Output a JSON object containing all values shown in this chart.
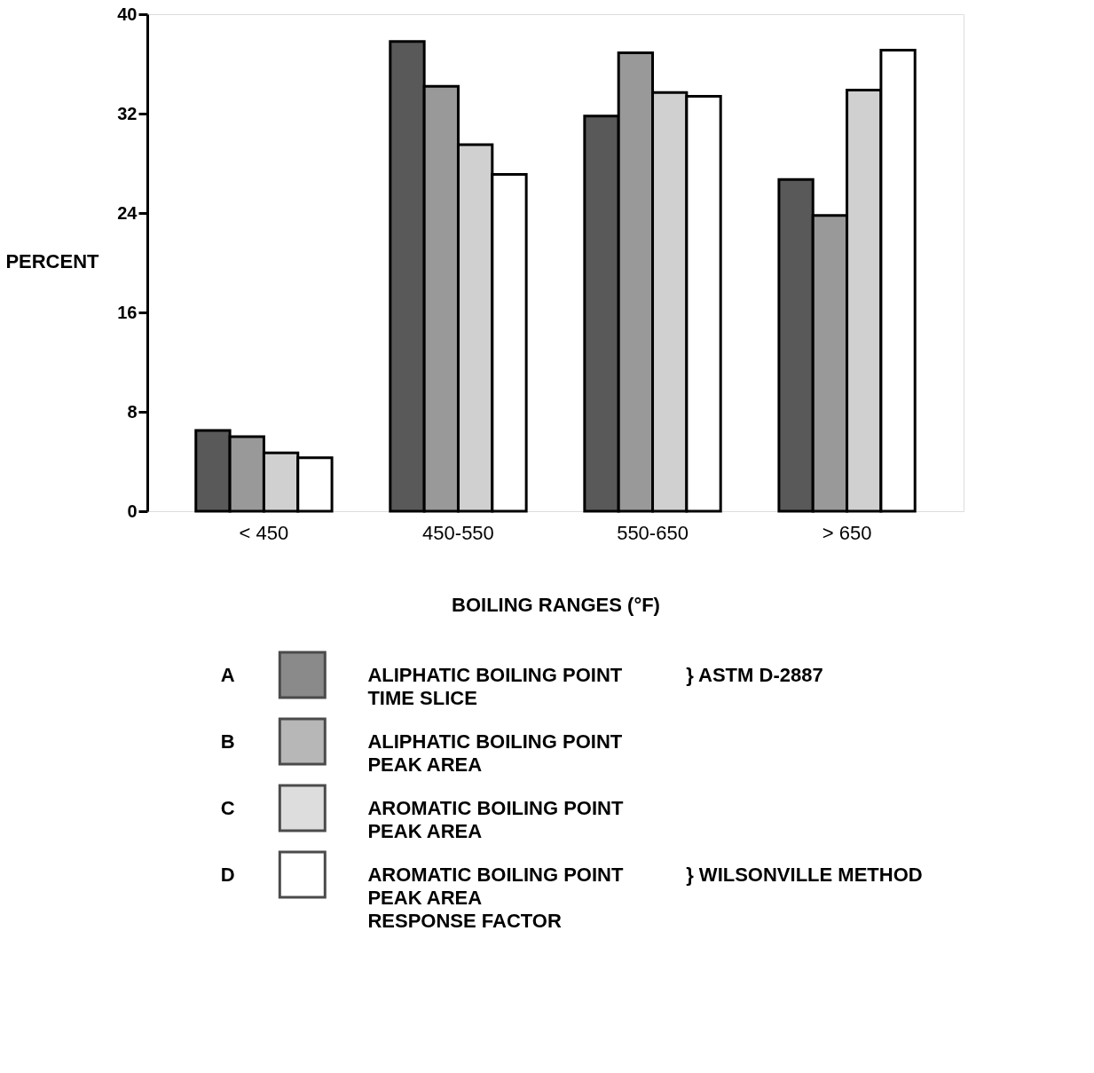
{
  "chart_data": {
    "type": "bar",
    "xlabel": "BOILING RANGES (°F)",
    "ylabel": "PERCENT",
    "categories": [
      "< 450",
      "450-550",
      "550-650",
      "> 650"
    ],
    "series": [
      {
        "name": "ALIPHATIC BOILING POINT\nTIME SLICE",
        "color": "#595959",
        "values": [
          6.5,
          37.8,
          31.8,
          26.7
        ]
      },
      {
        "name": "ALIPHATIC BOILING POINT\nPEAK AREA",
        "color": "#999999",
        "values": [
          6.0,
          34.2,
          36.9,
          23.8
        ]
      },
      {
        "name": "AROMATIC BOILING POINT\nPEAK AREA",
        "color": "#d0d0d0",
        "values": [
          4.7,
          29.5,
          33.7,
          33.9
        ]
      },
      {
        "name": "AROMATIC BOILING POINT\nPEAK AREA\nRESPONSE FACTOR",
        "color": "#ffffff",
        "values": [
          4.3,
          27.1,
          33.4,
          37.1
        ]
      }
    ],
    "ylim": [
      0,
      40
    ],
    "yticks": [
      0,
      8,
      16,
      24,
      32,
      40
    ],
    "grid": false,
    "legend": "bottom",
    "annotations": [
      "A",
      "B",
      "C",
      "D",
      "}  ASTM D-2887",
      "}  WILSONVILLE METHOD"
    ]
  }
}
